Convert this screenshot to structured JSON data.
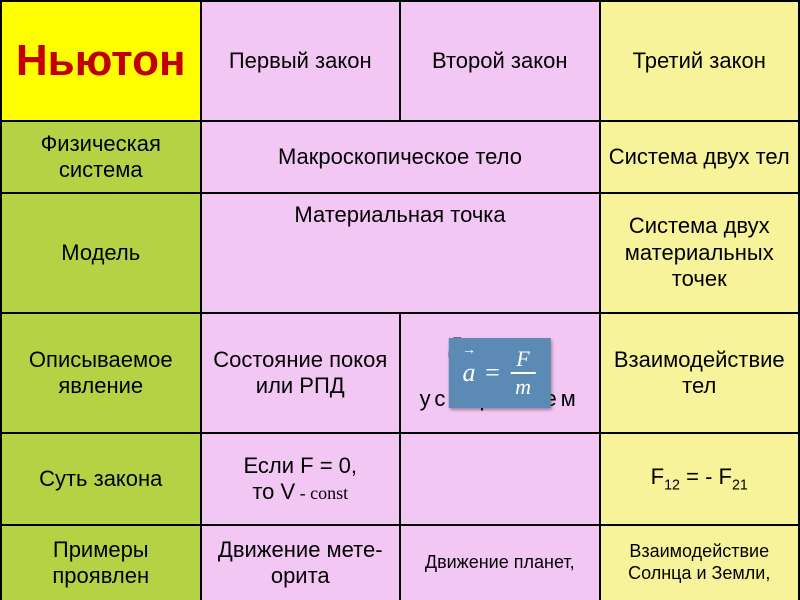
{
  "colors": {
    "header_bg": "#ffff00",
    "header_text": "#c00000",
    "green": "#b3d345",
    "pink": "#f3c7f3",
    "yellow": "#f7f39a",
    "formula_bg": "#5b8bb5",
    "formula_text": "#ffffff",
    "border": "#000000"
  },
  "header": {
    "title": "Ньютон",
    "col2": "Первый закон",
    "col3": "Второй закон",
    "col4": "Третий закон"
  },
  "rows": {
    "phys_system": {
      "label": "Физическая система",
      "merged": "Макроскопическое тело",
      "col4": "Система двух тел"
    },
    "model": {
      "label": "Модель",
      "merged": "Материальная точка",
      "col4": "Система двух материальных точек"
    },
    "phenomenon": {
      "label": "Описываемое явление",
      "col2": "Состояние покоя или РПД",
      "col3_top": "Движение",
      "col3_bot": "ускорением",
      "col4": "Взаимодействие тел"
    },
    "essence": {
      "label": "Суть закона",
      "col2_line1": "Если F = 0,",
      "col2_line2_a": "то  V",
      "col2_line2_b": " - const",
      "col3": "",
      "col4_a": "F",
      "col4_sub1": "12",
      "col4_mid": "  =  - F",
      "col4_sub2": "21"
    },
    "examples": {
      "label": "Примеры проявлен",
      "col2": "Движение мете-орита",
      "col3": "Движение планет,",
      "col4": "Взаимодействие Солнца и Земли,"
    }
  },
  "formula": {
    "a": "a",
    "eq": "=",
    "F": "F",
    "m": "m"
  }
}
